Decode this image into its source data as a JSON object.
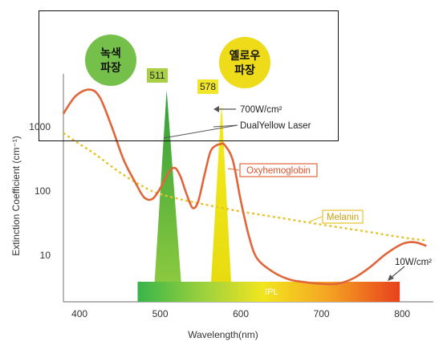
{
  "chart_data": {
    "type": "line",
    "xlabel": "Wavelength(nm)",
    "ylabel": "Extinction Coefficient (cm⁻¹)",
    "x_ticks": [
      400,
      500,
      600,
      700,
      800
    ],
    "y_ticks": [
      {
        "value": 10,
        "label": "10"
      },
      {
        "value": 100,
        "label": "100"
      },
      {
        "value": 1000,
        "label": "1000"
      }
    ],
    "xlim": [
      380,
      830
    ],
    "y_scale": "log",
    "series": [
      {
        "name": "Oxyhemoglobin",
        "color": "#e0663a",
        "x": [
          380,
          395,
          412,
          425,
          440,
          455,
          470,
          480,
          490,
          500,
          510,
          518,
          525,
          532,
          540,
          547,
          555,
          562,
          568,
          575,
          580,
          590,
          600,
          610,
          620,
          640,
          660,
          680,
          700,
          720,
          740,
          760,
          780,
          800,
          815,
          830
        ],
        "y": [
          1600,
          3000,
          3800,
          2900,
          1000,
          300,
          130,
          80,
          75,
          110,
          190,
          230,
          170,
          95,
          55,
          68,
          180,
          400,
          500,
          540,
          520,
          300,
          70,
          20,
          9,
          5.5,
          4.2,
          3.8,
          3.6,
          3.6,
          4.4,
          6.5,
          10.5,
          15,
          16,
          14
        ]
      },
      {
        "name": "Melanin",
        "color": "#e8c22a",
        "x": [
          380,
          400,
          420,
          450,
          480,
          500,
          530,
          560,
          600,
          650,
          700,
          750,
          800,
          830
        ],
        "y": [
          800,
          540,
          370,
          195,
          115,
          90,
          72,
          60,
          48,
          38,
          30,
          24,
          19,
          17
        ]
      }
    ],
    "lasers": [
      {
        "label": "511",
        "x": 511,
        "color": "#4caf3a",
        "badge_color": "#a9cf46"
      },
      {
        "label": "578",
        "x": 578,
        "color": "#f0e518",
        "badge_color": "#f1e62a"
      }
    ],
    "ipl": {
      "label": "IPL",
      "range": [
        480,
        800
      ]
    },
    "annotations": {
      "laser_power": "700W/cm²",
      "laser_name": "DualYellow Laser",
      "ipl_power": "10W/cm²",
      "oxy_label": "Oxyhemoglobin",
      "melanin_label": "Melanin"
    },
    "circles": [
      {
        "line1": "녹색",
        "line2": "파장",
        "color": "#74c04a"
      },
      {
        "line1": "옐로우",
        "line2": "파장",
        "color": "#eedb1a"
      }
    ],
    "grid": false
  }
}
